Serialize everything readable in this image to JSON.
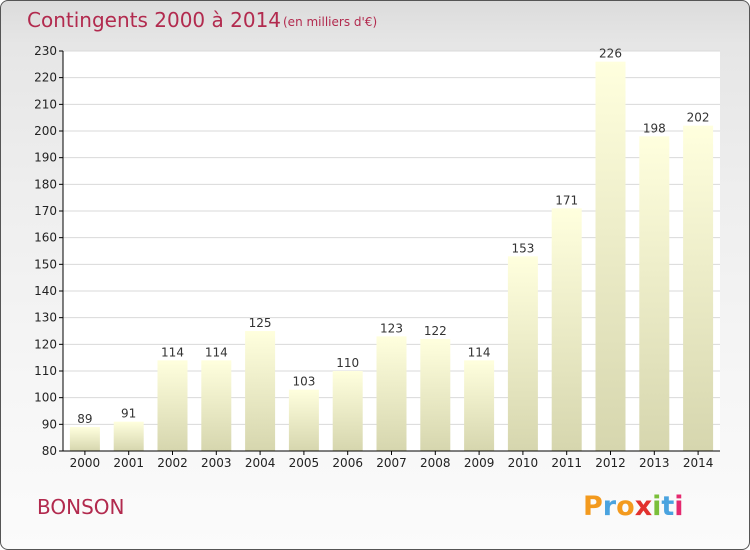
{
  "header": {
    "title": "Contingents 2000 à 2014",
    "subtitle": "(en milliers d'€)"
  },
  "commune": "BONSON",
  "logo": {
    "letters": [
      "P",
      "r",
      "o",
      "x",
      "i",
      "t",
      "i"
    ],
    "colors": [
      "#f39a1e",
      "#4aa3df",
      "#f39a1e",
      "#e2312e",
      "#7bbf3a",
      "#4aa3df",
      "#e5296f"
    ]
  },
  "colors": {
    "bar_light": "#ffffde",
    "bar_dark": "#d6d6ae",
    "plot_bg": "#ffffff",
    "axis": "#000000"
  },
  "chart_data": {
    "type": "bar",
    "title": "Contingents 2000 à 2014",
    "xlabel": "",
    "ylabel": "",
    "categories": [
      "2000",
      "2001",
      "2002",
      "2003",
      "2004",
      "2005",
      "2006",
      "2007",
      "2008",
      "2009",
      "2010",
      "2011",
      "2012",
      "2013",
      "2014"
    ],
    "values": [
      89,
      91,
      114,
      114,
      125,
      103,
      110,
      123,
      122,
      114,
      153,
      171,
      226,
      198,
      202
    ],
    "ylim": [
      80,
      230
    ],
    "yticks": [
      80,
      90,
      100,
      110,
      120,
      130,
      140,
      150,
      160,
      170,
      180,
      190,
      200,
      210,
      220,
      230
    ],
    "grid": true
  }
}
